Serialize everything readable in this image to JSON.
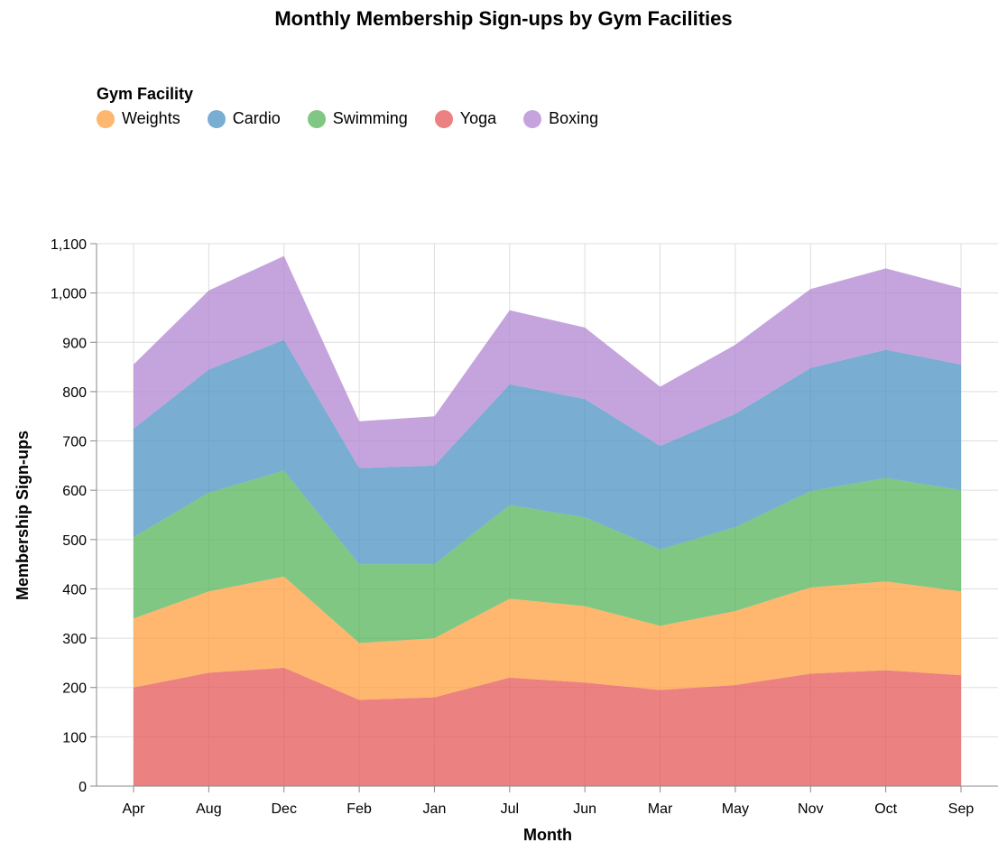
{
  "chart_data": {
    "type": "area",
    "stacked": true,
    "title": "Monthly Membership Sign-ups by Gym Facilities",
    "xlabel": "Month",
    "ylabel": "Membership Sign-ups",
    "ylim": [
      0,
      1100
    ],
    "yticks": [
      0,
      100,
      200,
      300,
      400,
      500,
      600,
      700,
      800,
      900,
      1000,
      1100
    ],
    "ytick_labels": [
      "0",
      "100",
      "200",
      "300",
      "400",
      "500",
      "600",
      "700",
      "800",
      "900",
      "1,000",
      "1,100"
    ],
    "grid": true,
    "legend_title": "Gym Facility",
    "legend_position": "top-left",
    "categories": [
      "Apr",
      "Aug",
      "Dec",
      "Feb",
      "Jan",
      "Jul",
      "Jun",
      "Mar",
      "May",
      "Nov",
      "Oct",
      "Sep"
    ],
    "series": [
      {
        "name": "Yoga",
        "color": "#e45756",
        "values": [
          200,
          230,
          240,
          175,
          180,
          220,
          210,
          195,
          205,
          228,
          235,
          225
        ]
      },
      {
        "name": "Weights",
        "color": "#ff9d3e",
        "values": [
          140,
          165,
          185,
          115,
          120,
          160,
          155,
          130,
          150,
          175,
          180,
          170
        ]
      },
      {
        "name": "Swimming",
        "color": "#54b45a",
        "values": [
          165,
          200,
          215,
          160,
          150,
          190,
          180,
          155,
          170,
          195,
          210,
          205
        ]
      },
      {
        "name": "Cardio",
        "color": "#4c92c3",
        "values": [
          220,
          250,
          265,
          195,
          200,
          245,
          240,
          210,
          230,
          250,
          260,
          255
        ]
      },
      {
        "name": "Boxing",
        "color": "#b185d1",
        "values": [
          130,
          160,
          170,
          95,
          100,
          150,
          145,
          120,
          140,
          160,
          165,
          155
        ]
      }
    ],
    "legend_order": [
      "Weights",
      "Cardio",
      "Swimming",
      "Yoga",
      "Boxing"
    ]
  }
}
